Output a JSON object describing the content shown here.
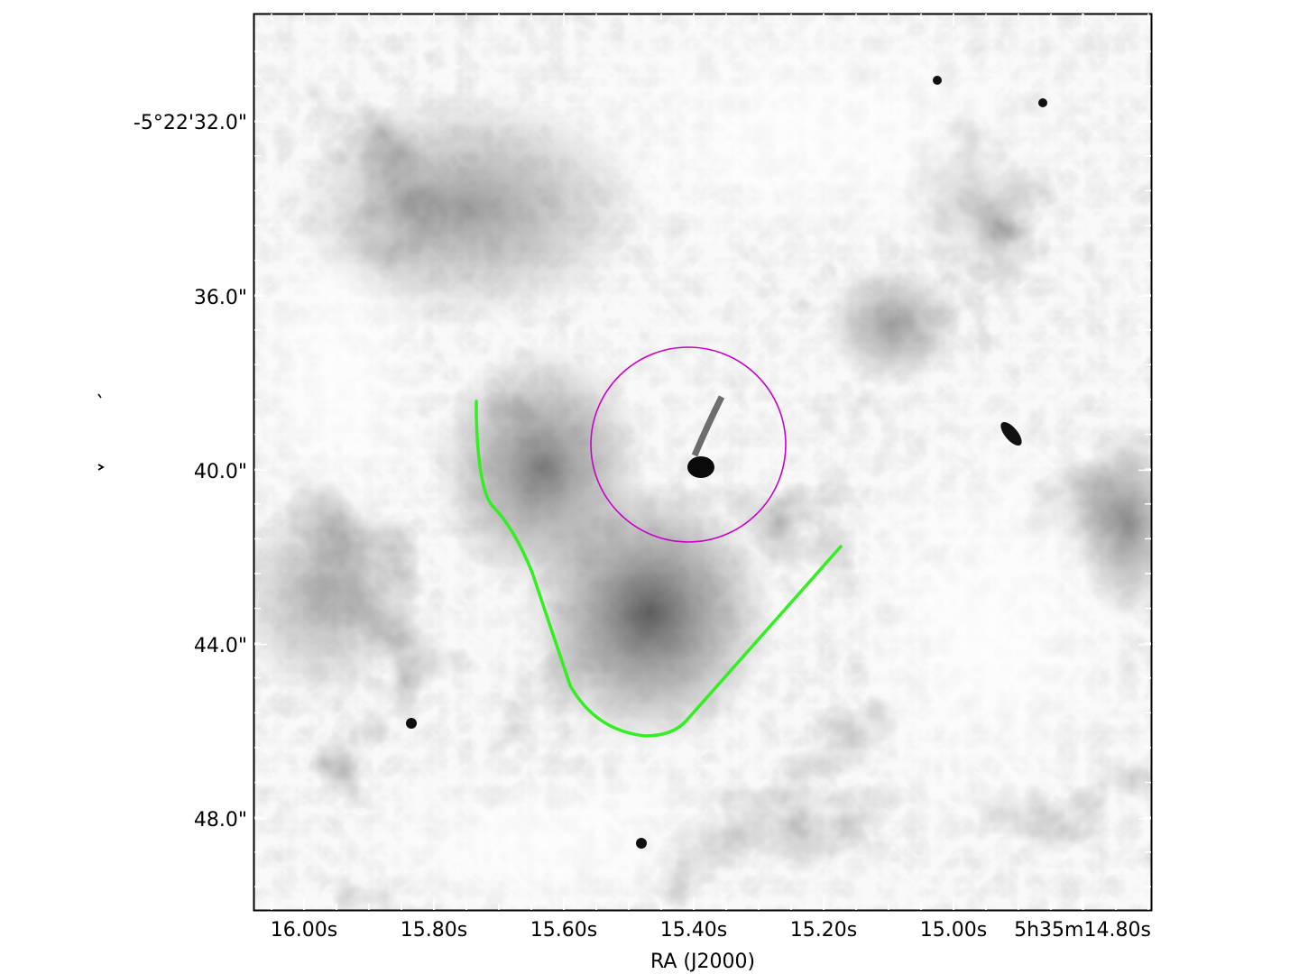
{
  "image": {
    "description_type": "grayscale astronomical image with RA/Dec coordinate grid",
    "colormap": "gray (inverted: dark = bright emission)",
    "overlay_circle_color": "#c800c8",
    "overlay_curve_color": "#33ee22"
  },
  "axes": {
    "x_title": "RA (J2000)",
    "x_ticks": [
      "16.00s",
      "15.80s",
      "15.60s",
      "15.40s",
      "15.20s",
      "15.00s",
      "5h35m14.80s"
    ],
    "y_ticks": [
      "-5°22'32.0\"",
      "36.0\"",
      "40.0\"",
      "44.0\"",
      "48.0\""
    ]
  }
}
